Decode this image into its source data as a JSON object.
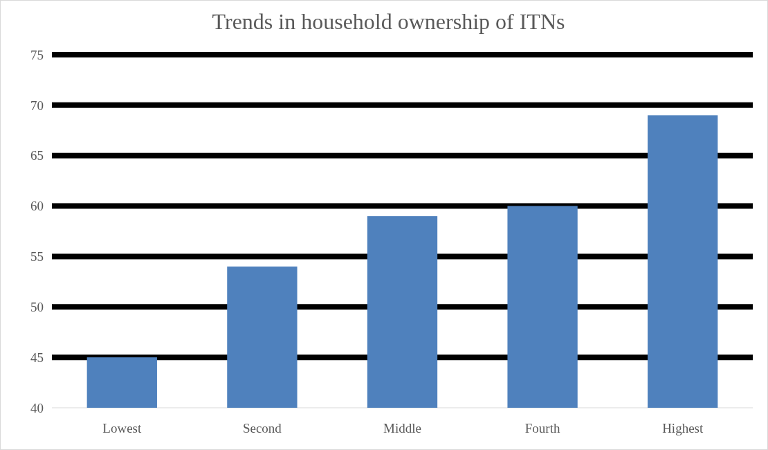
{
  "chart_data": {
    "type": "bar",
    "title": "Trends in household ownership of ITNs",
    "categories": [
      "Lowest",
      "Second",
      "Middle",
      "Fourth",
      "Highest"
    ],
    "values": [
      45,
      54,
      59,
      60,
      69
    ],
    "color": "#4f81bd",
    "ylim": [
      40,
      75
    ],
    "yticks": [
      40,
      45,
      50,
      55,
      60,
      65,
      70,
      75
    ],
    "grid": "y"
  }
}
